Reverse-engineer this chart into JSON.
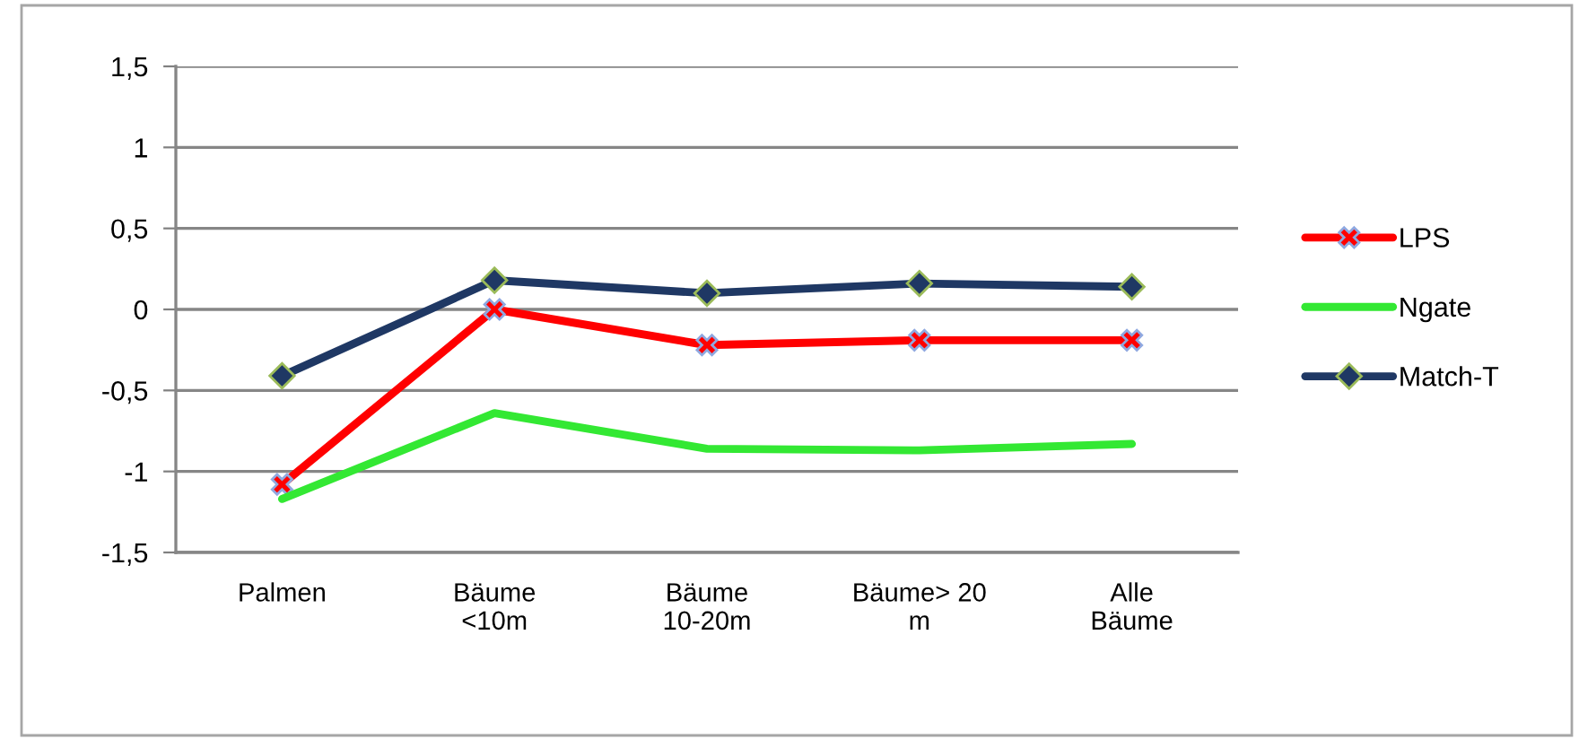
{
  "chart_data": {
    "type": "line",
    "categories": [
      "Palmen",
      "Bäume\n<10m",
      "Bäume\n10-20m",
      "Bäume> 20\nm",
      "Alle\nBäume"
    ],
    "series": [
      {
        "name": "LPS",
        "color": "#ff0000",
        "marker": "cross",
        "values": [
          -1.08,
          0.0,
          -0.22,
          -0.19,
          -0.19
        ]
      },
      {
        "name": "Ngate",
        "color": "#33e833",
        "marker": "none",
        "values": [
          -1.17,
          -0.64,
          -0.86,
          -0.87,
          -0.83
        ]
      },
      {
        "name": "Match-T",
        "color": "#1f3864",
        "marker": "diamond",
        "values": [
          -0.41,
          0.18,
          0.1,
          0.16,
          0.14
        ]
      }
    ],
    "ylim": [
      -1.5,
      1.5
    ],
    "yticks": [
      {
        "value": -1.5,
        "label": "-1,5"
      },
      -1,
      {
        "value": -0.5,
        "label": "-0,5"
      },
      0,
      {
        "value": 0.5,
        "label": "0,5"
      },
      1,
      {
        "value": 1.5,
        "label": "1,5"
      }
    ],
    "grid": "y",
    "legend": "right",
    "line_style": "solid"
  }
}
